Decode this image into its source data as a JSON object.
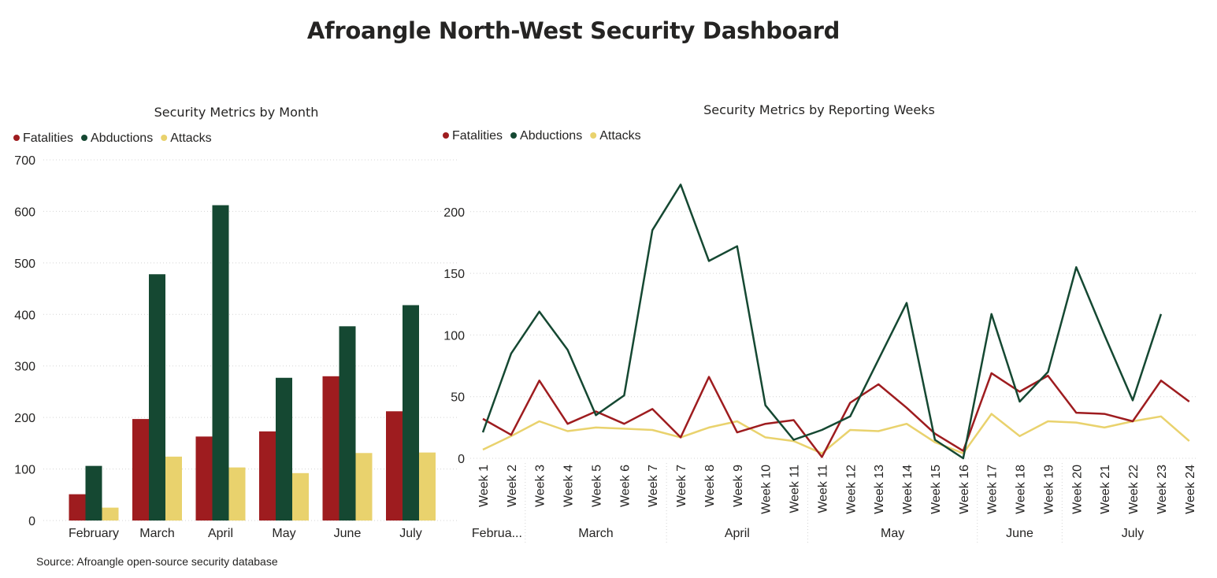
{
  "dashboard": {
    "title": "Afroangle North-West Security Dashboard",
    "source": "Source: Afroangle open-source security database"
  },
  "colors": {
    "Fatalities": "#9e1c1f",
    "Abductions": "#154832",
    "Attacks": "#e9d26d"
  },
  "chart_data": [
    {
      "type": "bar",
      "title": "Security Metrics by Month",
      "legend_position": "top-left",
      "grid": true,
      "categories": [
        "February",
        "March",
        "April",
        "May",
        "June",
        "July"
      ],
      "series": [
        {
          "name": "Fatalities",
          "values": [
            51,
            197,
            163,
            173,
            280,
            212
          ]
        },
        {
          "name": "Abductions",
          "values": [
            106,
            478,
            612,
            277,
            377,
            418
          ]
        },
        {
          "name": "Attacks",
          "values": [
            25,
            124,
            103,
            92,
            131,
            132
          ]
        }
      ],
      "ylim": [
        0,
        700
      ],
      "yticks": [
        0,
        100,
        200,
        300,
        400,
        500,
        600,
        700
      ]
    },
    {
      "type": "line",
      "title": "Security Metrics by Reporting Weeks",
      "legend_position": "top-left",
      "grid": true,
      "categories": [
        "Week 1",
        "Week 2",
        "Week 3",
        "Week 4",
        "Week 5",
        "Week 6",
        "Week 7",
        "Week 7",
        "Week 8",
        "Week 9",
        "Week 10",
        "Week 11",
        "Week 11",
        "Week 12",
        "Week 13",
        "Week 14",
        "Week 15",
        "Week 16",
        "Week 17",
        "Week 18",
        "Week 19",
        "Week 20",
        "Week 21",
        "Week 22",
        "Week 23",
        "Week 24"
      ],
      "groups": [
        {
          "label": "Februa...",
          "count": 2
        },
        {
          "label": "March",
          "count": 5
        },
        {
          "label": "April",
          "count": 5
        },
        {
          "label": "May",
          "count": 6
        },
        {
          "label": "June",
          "count": 3
        },
        {
          "label": "July",
          "count": 5
        }
      ],
      "series": [
        {
          "name": "Fatalities",
          "values": [
            32,
            19,
            63,
            28,
            38,
            28,
            40,
            17,
            66,
            21,
            28,
            31,
            1,
            45,
            60,
            41,
            20,
            6,
            69,
            54,
            67,
            37,
            36,
            30,
            63,
            46
          ]
        },
        {
          "name": "Abductions",
          "values": [
            21,
            85,
            119,
            88,
            35,
            51,
            185,
            222,
            160,
            172,
            43,
            15,
            23,
            34,
            80,
            126,
            15,
            0,
            117,
            46,
            70,
            155,
            100,
            47,
            117,
            null
          ]
        },
        {
          "name": "Attacks",
          "values": [
            7,
            18,
            30,
            22,
            25,
            24,
            23,
            17,
            25,
            30,
            17,
            14,
            4,
            23,
            22,
            28,
            13,
            4,
            36,
            18,
            30,
            29,
            25,
            30,
            34,
            14
          ]
        }
      ],
      "ylim": [
        0,
        235
      ],
      "yticks": [
        0,
        50,
        100,
        150,
        200
      ]
    }
  ]
}
